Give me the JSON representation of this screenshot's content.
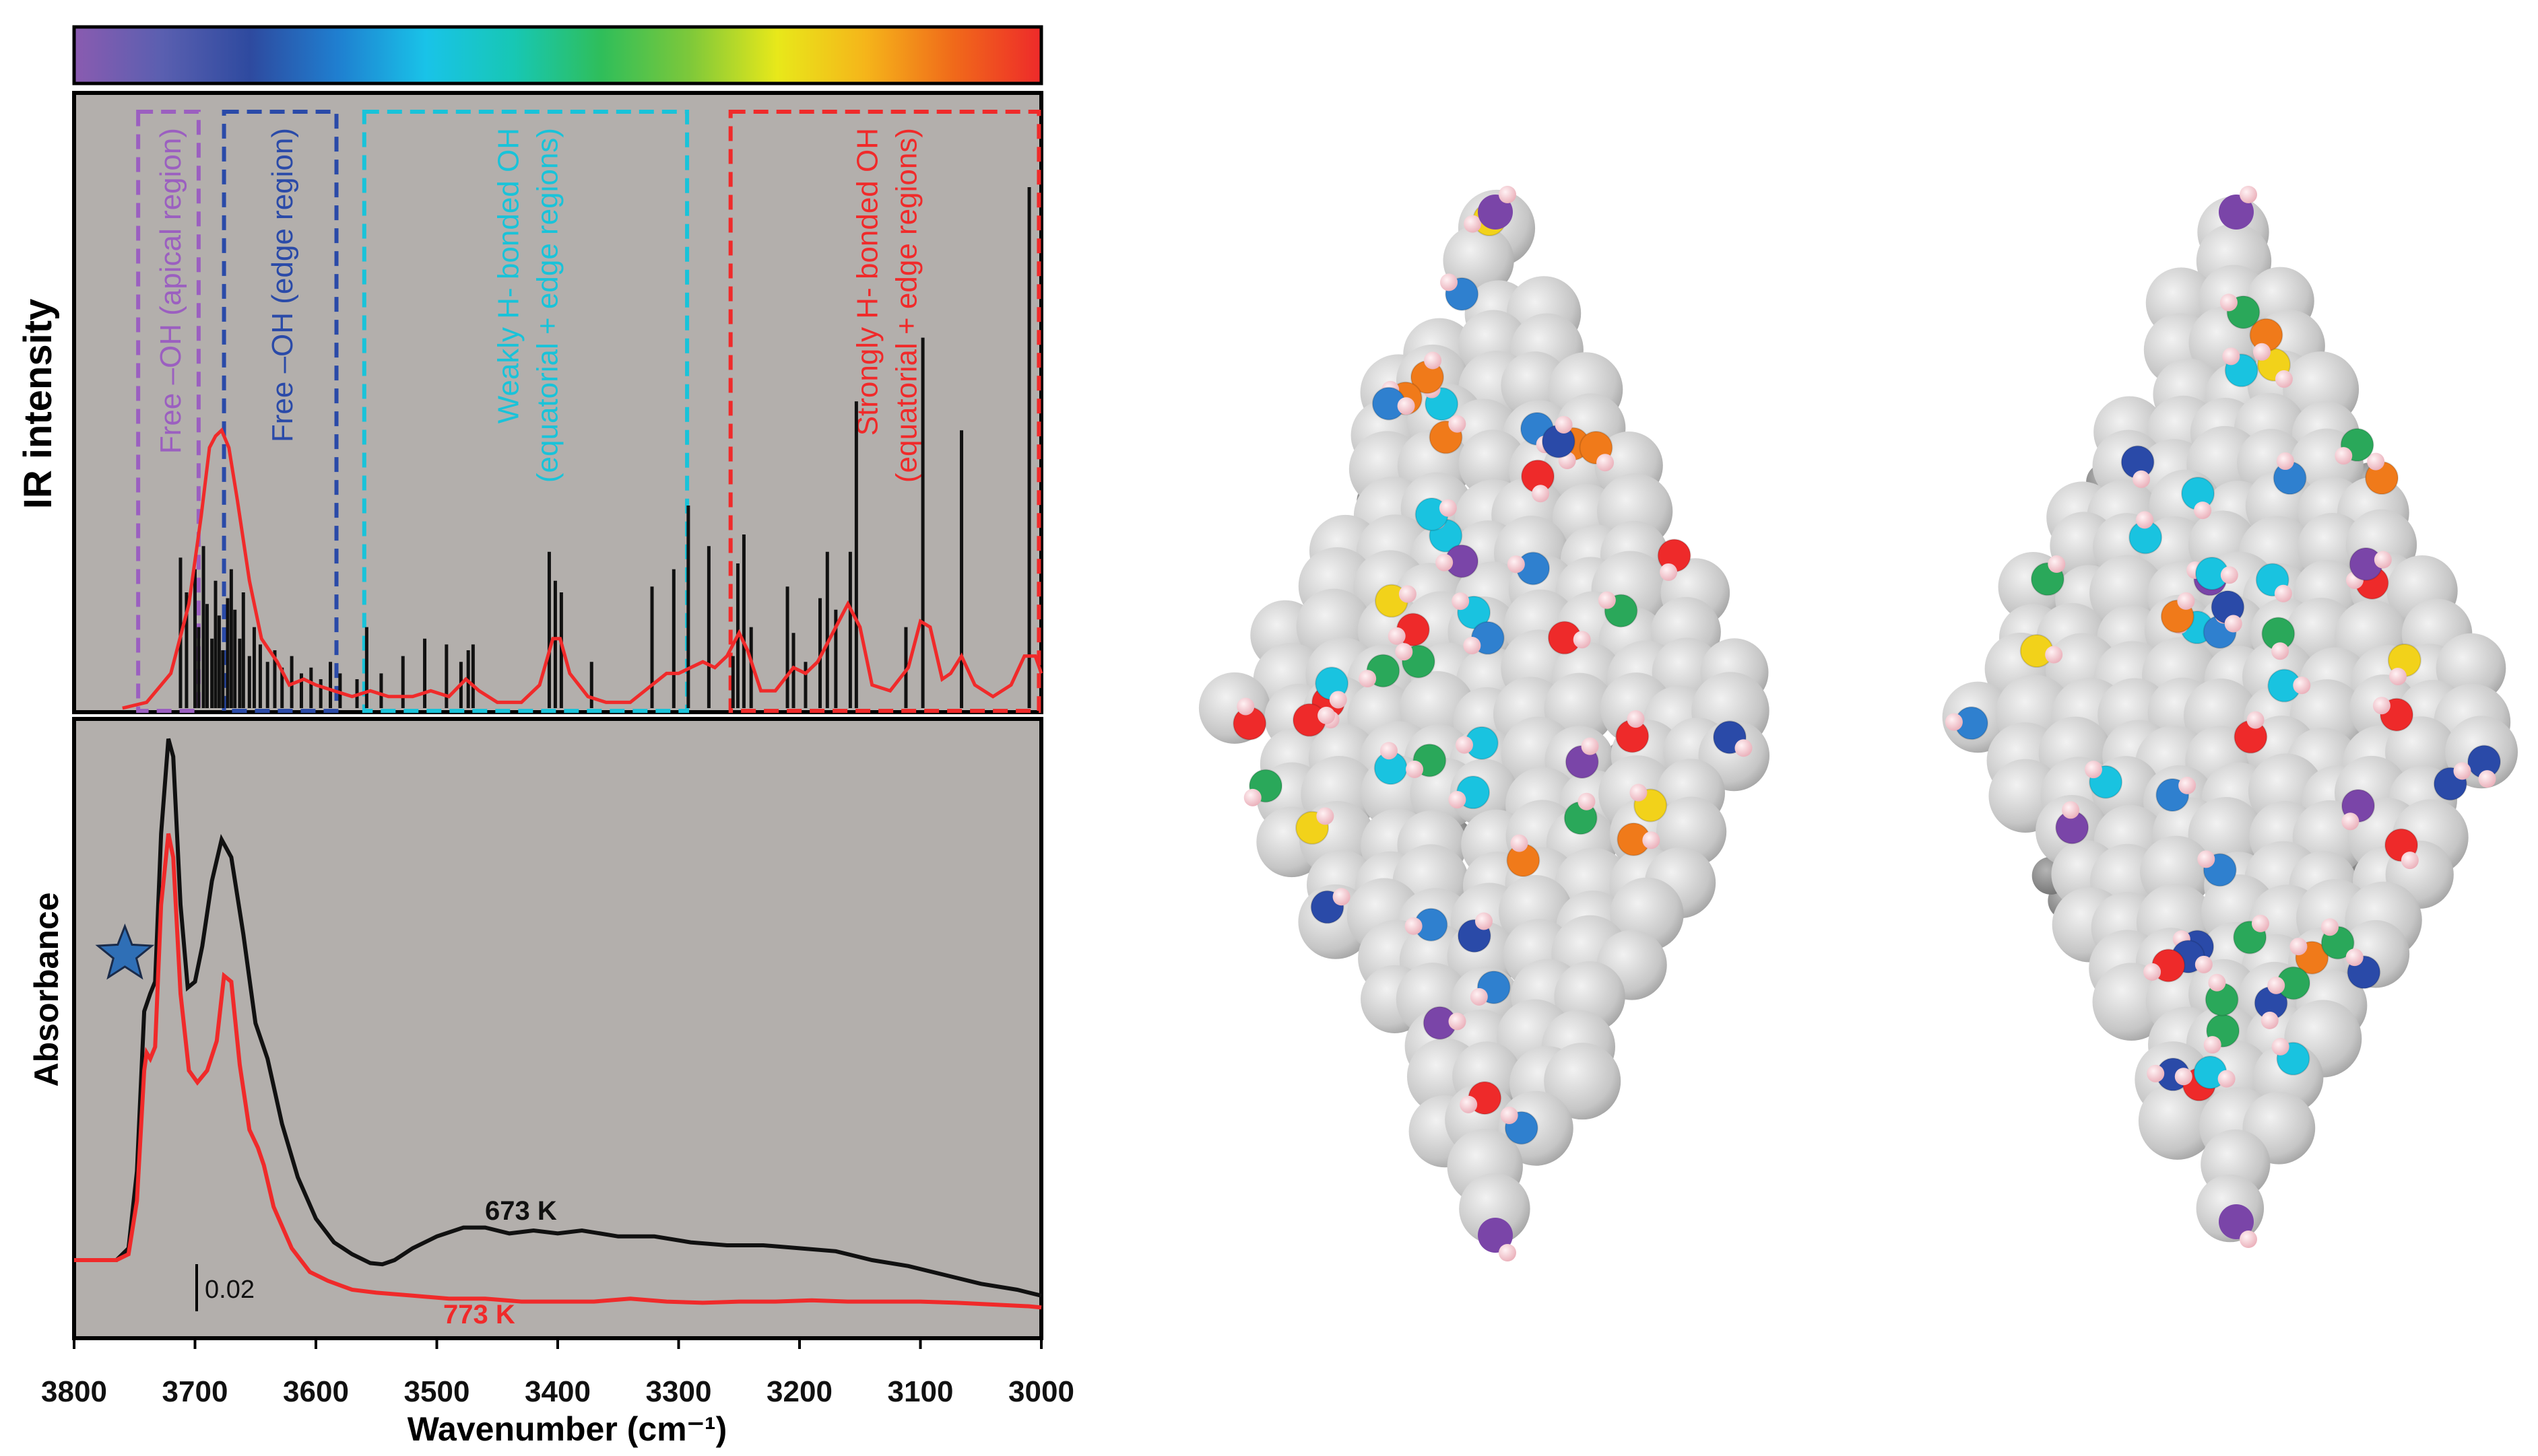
{
  "colors": {
    "panel_bg": "#b3afac",
    "apical": "#9b5fc0",
    "edge": "#2a4aa8",
    "weak": "#19c3d9",
    "strong": "#f02a2a",
    "black": "#111111",
    "red": "#f02a2a",
    "star": "#2f6fb6",
    "atom_gray": "#c9c9c9",
    "atom_dark": "#8c8c8c",
    "atom_pink": "#f5c6cf"
  },
  "colorbar": {
    "stops": [
      "#8a5bb0",
      "#5a5fb0",
      "#2e4a9f",
      "#1f7fd0",
      "#19c3e8",
      "#17c7b4",
      "#2fbe5a",
      "#7dc83a",
      "#e8e81a",
      "#f5b51a",
      "#f06a1a",
      "#ee2a2a"
    ]
  },
  "chart_data": [
    {
      "panel": "top",
      "type": "line+bar",
      "ylabel": "IR intensity",
      "xlim": [
        3800,
        3000
      ],
      "ylim": [
        0,
        1.0
      ],
      "regions": [
        {
          "label": "Free –OH (apical region)",
          "x_from": 3747,
          "x_to": 3697,
          "color_key": "apical"
        },
        {
          "label": "Free –OH (edge region)",
          "x_from": 3676,
          "x_to": 3583,
          "color_key": "edge"
        },
        {
          "label_lines": [
            "Weakly H- bonded OH",
            "(equatorial + edge regions)"
          ],
          "x_from": 3560,
          "x_to": 3293,
          "color_key": "weak"
        },
        {
          "label_lines": [
            "Strongly H- bonded OH",
            "(equatorial + edge regions)"
          ],
          "x_from": 3257,
          "x_to": 3002,
          "color_key": "strong"
        }
      ],
      "sticks": [
        [
          3712,
          0.26
        ],
        [
          3707,
          0.2
        ],
        [
          3700,
          0.24
        ],
        [
          3697,
          0.14
        ],
        [
          3693,
          0.28
        ],
        [
          3690,
          0.18
        ],
        [
          3686,
          0.12
        ],
        [
          3683,
          0.22
        ],
        [
          3680,
          0.16
        ],
        [
          3677,
          0.1
        ],
        [
          3673,
          0.19
        ],
        [
          3670,
          0.24
        ],
        [
          3667,
          0.17
        ],
        [
          3663,
          0.12
        ],
        [
          3660,
          0.2
        ],
        [
          3655,
          0.09
        ],
        [
          3651,
          0.14
        ],
        [
          3646,
          0.11
        ],
        [
          3640,
          0.08
        ],
        [
          3634,
          0.1
        ],
        [
          3628,
          0.07
        ],
        [
          3620,
          0.09
        ],
        [
          3612,
          0.06
        ],
        [
          3604,
          0.07
        ],
        [
          3596,
          0.05
        ],
        [
          3588,
          0.08
        ],
        [
          3580,
          0.06
        ],
        [
          3566,
          0.05
        ],
        [
          3558,
          0.14
        ],
        [
          3546,
          0.06
        ],
        [
          3528,
          0.09
        ],
        [
          3510,
          0.12
        ],
        [
          3492,
          0.11
        ],
        [
          3480,
          0.08
        ],
        [
          3474,
          0.1
        ],
        [
          3470,
          0.11
        ],
        [
          3407,
          0.27
        ],
        [
          3402,
          0.22
        ],
        [
          3397,
          0.2
        ],
        [
          3372,
          0.08
        ],
        [
          3322,
          0.21
        ],
        [
          3304,
          0.24
        ],
        [
          3292,
          0.35
        ],
        [
          3275,
          0.28
        ],
        [
          3255,
          0.09
        ],
        [
          3251,
          0.25
        ],
        [
          3246,
          0.3
        ],
        [
          3240,
          0.14
        ],
        [
          3210,
          0.21
        ],
        [
          3205,
          0.13
        ],
        [
          3195,
          0.08
        ],
        [
          3183,
          0.19
        ],
        [
          3177,
          0.27
        ],
        [
          3170,
          0.17
        ],
        [
          3158,
          0.27
        ],
        [
          3153,
          0.53
        ],
        [
          3112,
          0.14
        ],
        [
          3098,
          0.64
        ],
        [
          3066,
          0.48
        ],
        [
          3010,
          0.9
        ]
      ],
      "curve": [
        [
          3760,
          0.0
        ],
        [
          3740,
          0.01
        ],
        [
          3720,
          0.06
        ],
        [
          3705,
          0.18
        ],
        [
          3695,
          0.33
        ],
        [
          3688,
          0.45
        ],
        [
          3683,
          0.47
        ],
        [
          3678,
          0.48
        ],
        [
          3672,
          0.45
        ],
        [
          3665,
          0.36
        ],
        [
          3655,
          0.22
        ],
        [
          3645,
          0.12
        ],
        [
          3632,
          0.08
        ],
        [
          3622,
          0.04
        ],
        [
          3610,
          0.05
        ],
        [
          3600,
          0.04
        ],
        [
          3585,
          0.03
        ],
        [
          3570,
          0.02
        ],
        [
          3555,
          0.03
        ],
        [
          3540,
          0.02
        ],
        [
          3520,
          0.02
        ],
        [
          3505,
          0.03
        ],
        [
          3490,
          0.02
        ],
        [
          3476,
          0.05
        ],
        [
          3465,
          0.03
        ],
        [
          3450,
          0.01
        ],
        [
          3430,
          0.01
        ],
        [
          3415,
          0.04
        ],
        [
          3404,
          0.12
        ],
        [
          3398,
          0.12
        ],
        [
          3390,
          0.06
        ],
        [
          3375,
          0.02
        ],
        [
          3360,
          0.01
        ],
        [
          3340,
          0.01
        ],
        [
          3322,
          0.04
        ],
        [
          3310,
          0.06
        ],
        [
          3300,
          0.06
        ],
        [
          3290,
          0.07
        ],
        [
          3280,
          0.08
        ],
        [
          3270,
          0.07
        ],
        [
          3260,
          0.09
        ],
        [
          3250,
          0.13
        ],
        [
          3243,
          0.1
        ],
        [
          3232,
          0.03
        ],
        [
          3220,
          0.03
        ],
        [
          3205,
          0.07
        ],
        [
          3195,
          0.06
        ],
        [
          3185,
          0.08
        ],
        [
          3175,
          0.12
        ],
        [
          3160,
          0.18
        ],
        [
          3150,
          0.14
        ],
        [
          3140,
          0.04
        ],
        [
          3125,
          0.03
        ],
        [
          3110,
          0.07
        ],
        [
          3100,
          0.15
        ],
        [
          3092,
          0.14
        ],
        [
          3082,
          0.05
        ],
        [
          3075,
          0.06
        ],
        [
          3066,
          0.09
        ],
        [
          3055,
          0.04
        ],
        [
          3040,
          0.02
        ],
        [
          3025,
          0.04
        ],
        [
          3014,
          0.09
        ],
        [
          3005,
          0.09
        ],
        [
          3000,
          0.06
        ]
      ]
    },
    {
      "panel": "bottom",
      "type": "line",
      "xlabel": "Wavenumber (cm⁻¹)",
      "ylabel": "Absorbance",
      "xlim": [
        3800,
        3000
      ],
      "ylim": [
        0,
        1.0
      ],
      "x_ticks": [
        "3800",
        "3700",
        "3600",
        "3500",
        "3400",
        "3300",
        "3200",
        "3100",
        "3000"
      ],
      "x_tick_values": [
        3800,
        3700,
        3600,
        3500,
        3400,
        3300,
        3200,
        3100,
        3000
      ],
      "scale_bar_label": "0.02",
      "star_at": 3758,
      "series": [
        {
          "name": "673 K",
          "color_key": "black",
          "points": [
            [
              3800,
              0.1
            ],
            [
              3780,
              0.1
            ],
            [
              3765,
              0.1
            ],
            [
              3755,
              0.12
            ],
            [
              3748,
              0.25
            ],
            [
              3742,
              0.52
            ],
            [
              3737,
              0.55
            ],
            [
              3733,
              0.57
            ],
            [
              3728,
              0.82
            ],
            [
              3722,
              0.98
            ],
            [
              3718,
              0.95
            ],
            [
              3712,
              0.7
            ],
            [
              3706,
              0.56
            ],
            [
              3700,
              0.57
            ],
            [
              3694,
              0.63
            ],
            [
              3686,
              0.74
            ],
            [
              3678,
              0.81
            ],
            [
              3670,
              0.78
            ],
            [
              3660,
              0.65
            ],
            [
              3650,
              0.5
            ],
            [
              3640,
              0.44
            ],
            [
              3628,
              0.33
            ],
            [
              3615,
              0.24
            ],
            [
              3600,
              0.17
            ],
            [
              3585,
              0.13
            ],
            [
              3570,
              0.11
            ],
            [
              3555,
              0.095
            ],
            [
              3545,
              0.093
            ],
            [
              3535,
              0.1
            ],
            [
              3520,
              0.12
            ],
            [
              3500,
              0.14
            ],
            [
              3478,
              0.155
            ],
            [
              3460,
              0.155
            ],
            [
              3440,
              0.145
            ],
            [
              3420,
              0.15
            ],
            [
              3400,
              0.145
            ],
            [
              3380,
              0.15
            ],
            [
              3350,
              0.14
            ],
            [
              3320,
              0.14
            ],
            [
              3290,
              0.13
            ],
            [
              3260,
              0.125
            ],
            [
              3230,
              0.125
            ],
            [
              3200,
              0.12
            ],
            [
              3170,
              0.115
            ],
            [
              3140,
              0.1
            ],
            [
              3110,
              0.09
            ],
            [
              3080,
              0.075
            ],
            [
              3050,
              0.06
            ],
            [
              3020,
              0.05
            ],
            [
              3000,
              0.04
            ]
          ]
        },
        {
          "name": "773 K",
          "color_key": "red",
          "points": [
            [
              3800,
              0.1
            ],
            [
              3780,
              0.1
            ],
            [
              3765,
              0.1
            ],
            [
              3755,
              0.11
            ],
            [
              3748,
              0.2
            ],
            [
              3742,
              0.42
            ],
            [
              3740,
              0.45
            ],
            [
              3737,
              0.44
            ],
            [
              3733,
              0.46
            ],
            [
              3728,
              0.7
            ],
            [
              3722,
              0.82
            ],
            [
              3718,
              0.78
            ],
            [
              3712,
              0.55
            ],
            [
              3705,
              0.42
            ],
            [
              3698,
              0.4
            ],
            [
              3690,
              0.42
            ],
            [
              3682,
              0.47
            ],
            [
              3676,
              0.58
            ],
            [
              3670,
              0.57
            ],
            [
              3663,
              0.43
            ],
            [
              3655,
              0.32
            ],
            [
              3648,
              0.29
            ],
            [
              3643,
              0.26
            ],
            [
              3635,
              0.19
            ],
            [
              3620,
              0.12
            ],
            [
              3605,
              0.08
            ],
            [
              3590,
              0.065
            ],
            [
              3570,
              0.05
            ],
            [
              3550,
              0.045
            ],
            [
              3520,
              0.04
            ],
            [
              3490,
              0.035
            ],
            [
              3460,
              0.035
            ],
            [
              3430,
              0.03
            ],
            [
              3400,
              0.03
            ],
            [
              3370,
              0.03
            ],
            [
              3340,
              0.035
            ],
            [
              3310,
              0.03
            ],
            [
              3280,
              0.028
            ],
            [
              3250,
              0.03
            ],
            [
              3220,
              0.03
            ],
            [
              3190,
              0.032
            ],
            [
              3160,
              0.03
            ],
            [
              3130,
              0.03
            ],
            [
              3100,
              0.03
            ],
            [
              3070,
              0.028
            ],
            [
              3040,
              0.025
            ],
            [
              3010,
              0.022
            ],
            [
              3000,
              0.02
            ]
          ]
        }
      ]
    }
  ]
}
